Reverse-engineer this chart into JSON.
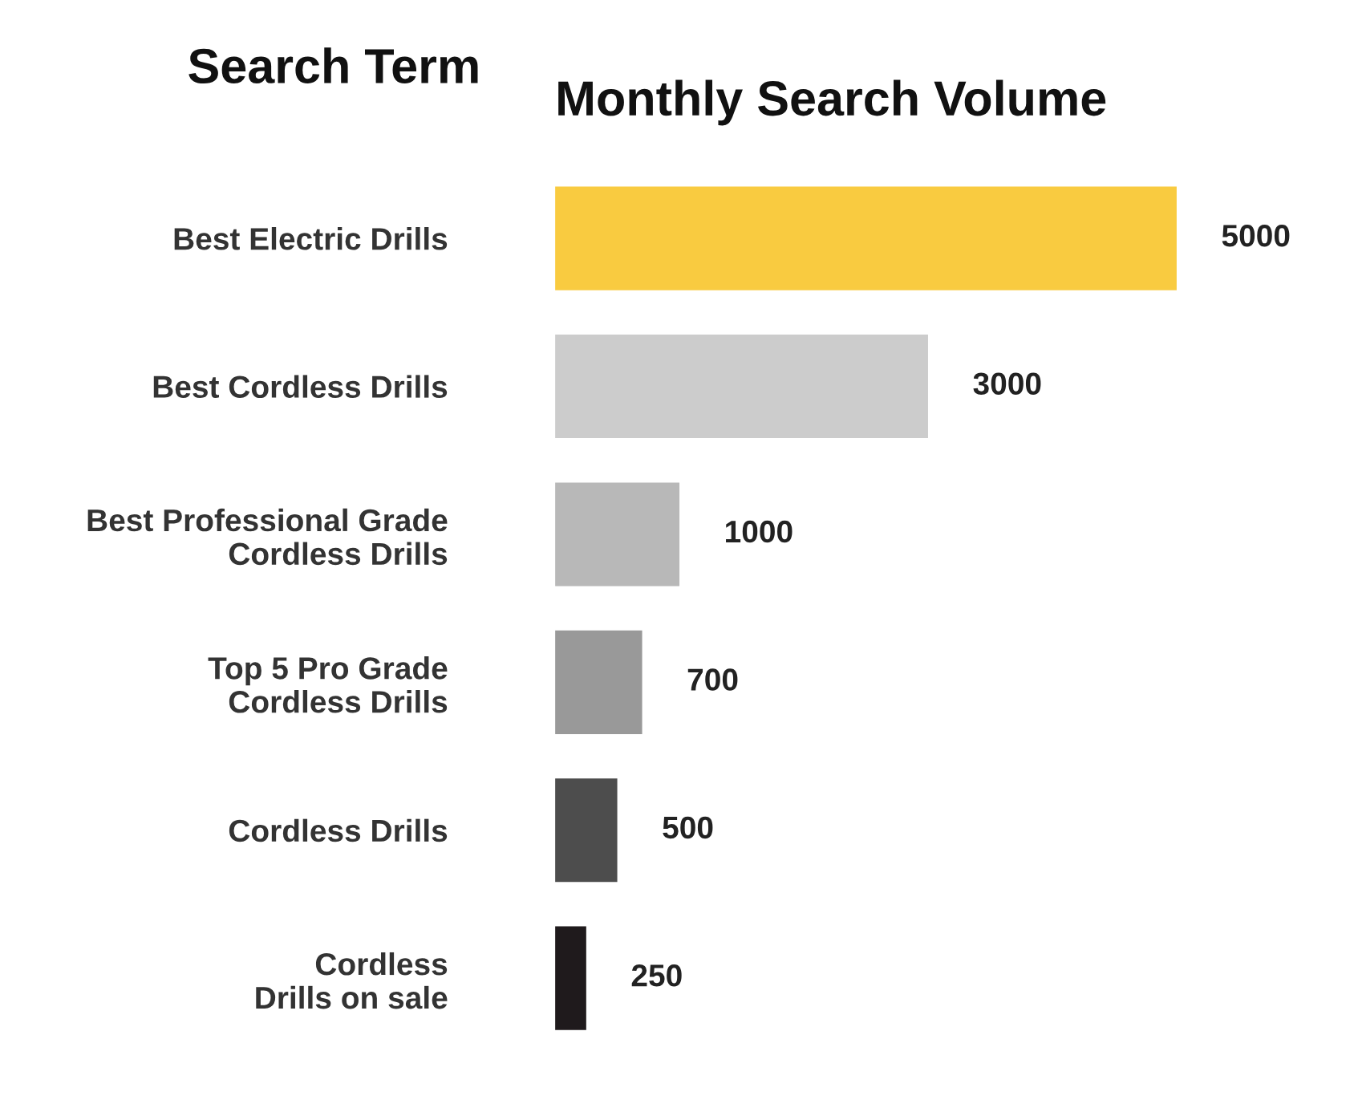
{
  "chart_data": {
    "type": "bar",
    "orientation": "horizontal",
    "title": "Monthly Search Volume",
    "ylabel": "Search Term",
    "categories": [
      "Best Electric Drills",
      "Best Cordless Drills",
      "Best Professional Grade\nCordless Drills",
      "Top 5 Pro Grade\nCordless Drills",
      "Cordless Drills",
      "Cordless\nDrills on sale"
    ],
    "values": [
      5000,
      3000,
      1000,
      700,
      500,
      250
    ],
    "colors": [
      "#f9cb40",
      "#cccccc",
      "#b8b8b8",
      "#999999",
      "#4d4d4d",
      "#1f1a1c"
    ],
    "data_labels": true,
    "grid": false,
    "legend": false
  }
}
